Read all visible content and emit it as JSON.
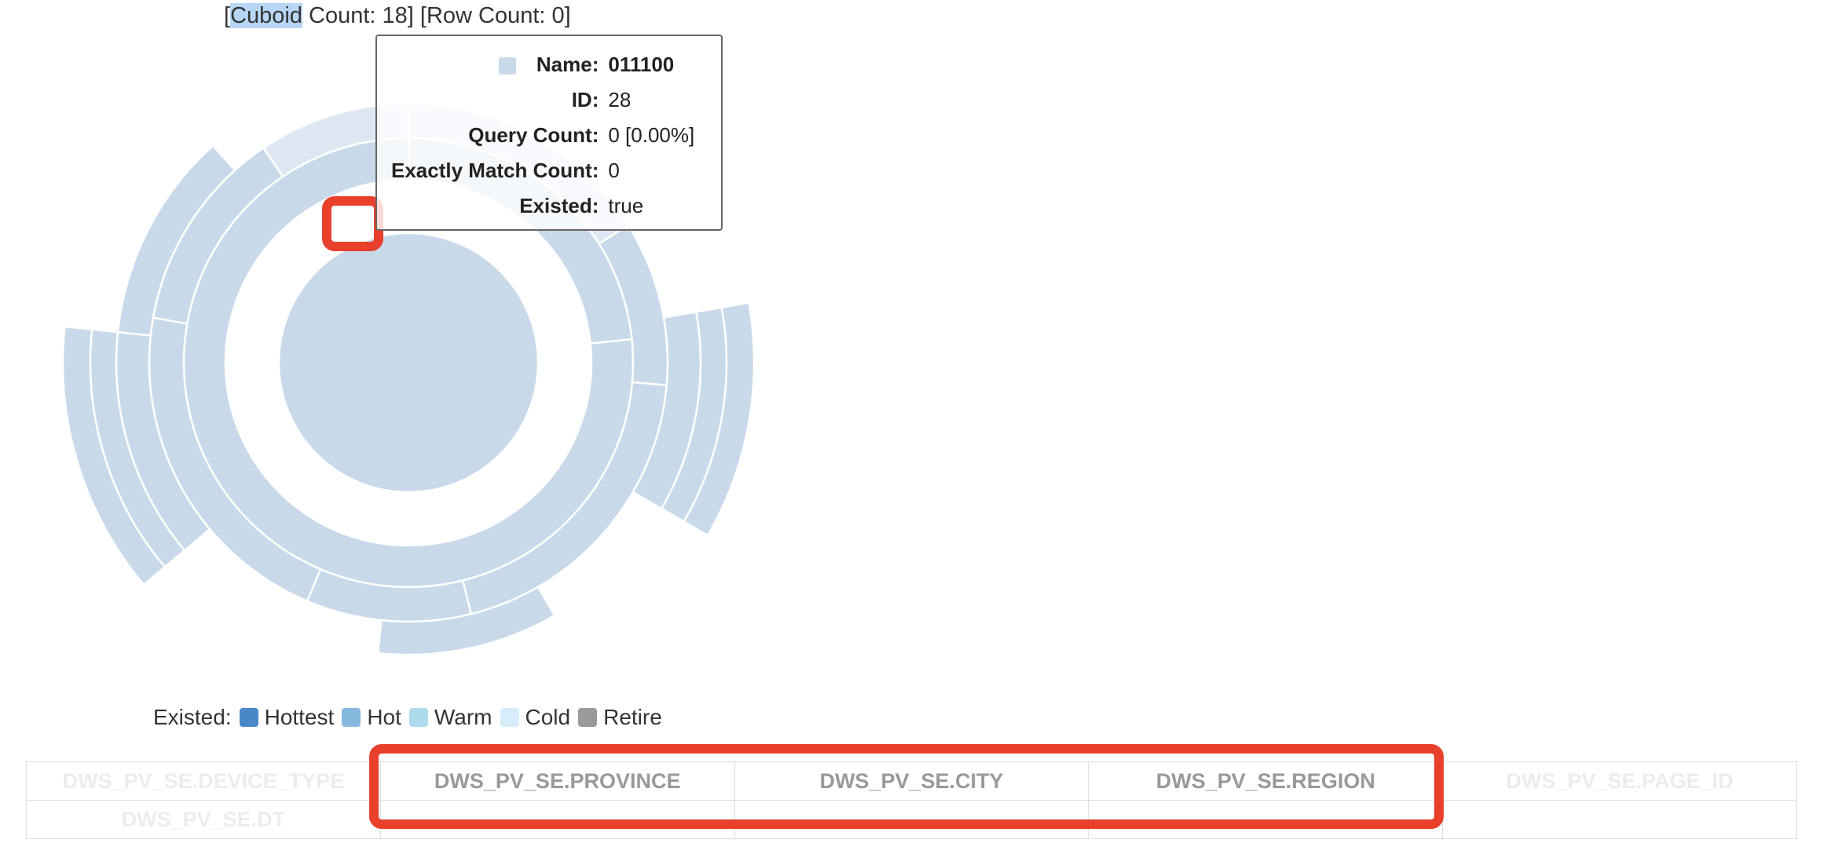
{
  "header": {
    "open_bracket": "[",
    "cuboid_word": "Cuboid",
    "cuboid_count_text": " Count: 18] [Row Count: 0]"
  },
  "tooltip": {
    "rows": [
      {
        "key": "Name:",
        "value": "011100"
      },
      {
        "key": "ID:",
        "value": "28"
      },
      {
        "key": "Query Count:",
        "value": "0 [0.00%]"
      },
      {
        "key": "Exactly Match Count:",
        "value": "0"
      },
      {
        "key": "Existed:",
        "value": "true"
      }
    ]
  },
  "legend": {
    "label": "Existed:",
    "items": [
      {
        "name": "Hottest",
        "color": "#4a87c9"
      },
      {
        "name": "Hot",
        "color": "#86b8de"
      },
      {
        "name": "Warm",
        "color": "#aedaed"
      },
      {
        "name": "Cold",
        "color": "#d6ecfa"
      },
      {
        "name": "Retire",
        "color": "#9a9a9a"
      }
    ]
  },
  "dimensions": {
    "row1": [
      "DWS_PV_SE.DEVICE_TYPE",
      "DWS_PV_SE.PROVINCE",
      "DWS_PV_SE.CITY",
      "DWS_PV_SE.REGION",
      "DWS_PV_SE.PAGE_ID"
    ],
    "row2": [
      "DWS_PV_SE.DT",
      "",
      "",
      "",
      ""
    ]
  },
  "chart_data": {
    "type": "sunburst",
    "title": "",
    "cuboid_count": 18,
    "row_count": 0,
    "segment_color": "#c8d9ea",
    "hovered": {
      "name": "011100",
      "id": 28,
      "query_count": 0,
      "query_pct": "0.00%",
      "exactly_match_count": 0,
      "existed": true
    }
  }
}
